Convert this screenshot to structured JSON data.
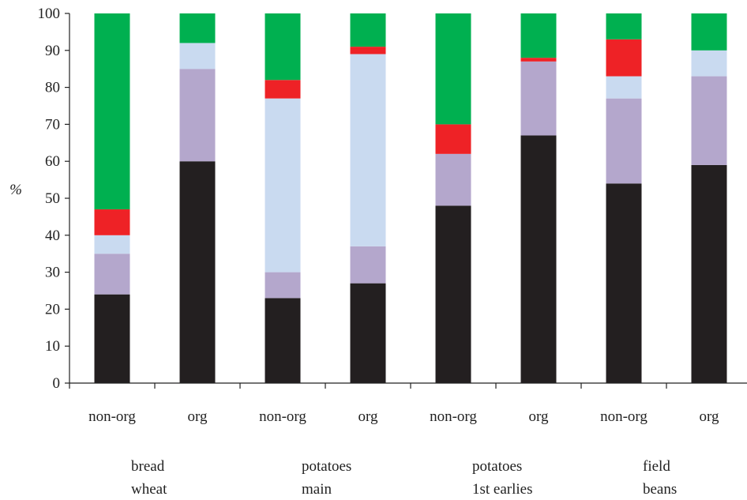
{
  "chart_data": {
    "type": "bar",
    "stacked": true,
    "ylabel": "%",
    "xlabel": "",
    "title": "",
    "ylim": [
      0,
      100
    ],
    "yticks": [
      0,
      10,
      20,
      30,
      40,
      50,
      60,
      70,
      80,
      90,
      100
    ],
    "grid": false,
    "legend": "none",
    "categories": [
      "non-org",
      "org",
      "non-org",
      "org",
      "non-org",
      "org",
      "non-org",
      "org"
    ],
    "groups": [
      {
        "label_lines": [
          "bread",
          "wheat"
        ],
        "start_index": 0,
        "count": 2
      },
      {
        "label_lines": [
          "potatoes",
          "main"
        ],
        "start_index": 2,
        "count": 2
      },
      {
        "label_lines": [
          "potatoes",
          "1st earlies"
        ],
        "start_index": 4,
        "count": 2
      },
      {
        "label_lines": [
          "field",
          "beans"
        ],
        "start_index": 6,
        "count": 2
      }
    ],
    "series": [
      {
        "color": "#231f20",
        "values": [
          24,
          60,
          23,
          27,
          48,
          67,
          54,
          59
        ]
      },
      {
        "color": "#b4a7cc",
        "values": [
          11,
          25,
          7,
          10,
          14,
          20,
          23,
          24
        ]
      },
      {
        "color": "#c9daf0",
        "values": [
          5,
          7,
          47,
          52,
          0,
          0,
          6,
          7
        ]
      },
      {
        "color": "#ee2226",
        "values": [
          7,
          0,
          5,
          2,
          8,
          1,
          10,
          0
        ]
      },
      {
        "color": "#00b050",
        "values": [
          53,
          8,
          18,
          9,
          30,
          12,
          7,
          10
        ]
      }
    ]
  }
}
